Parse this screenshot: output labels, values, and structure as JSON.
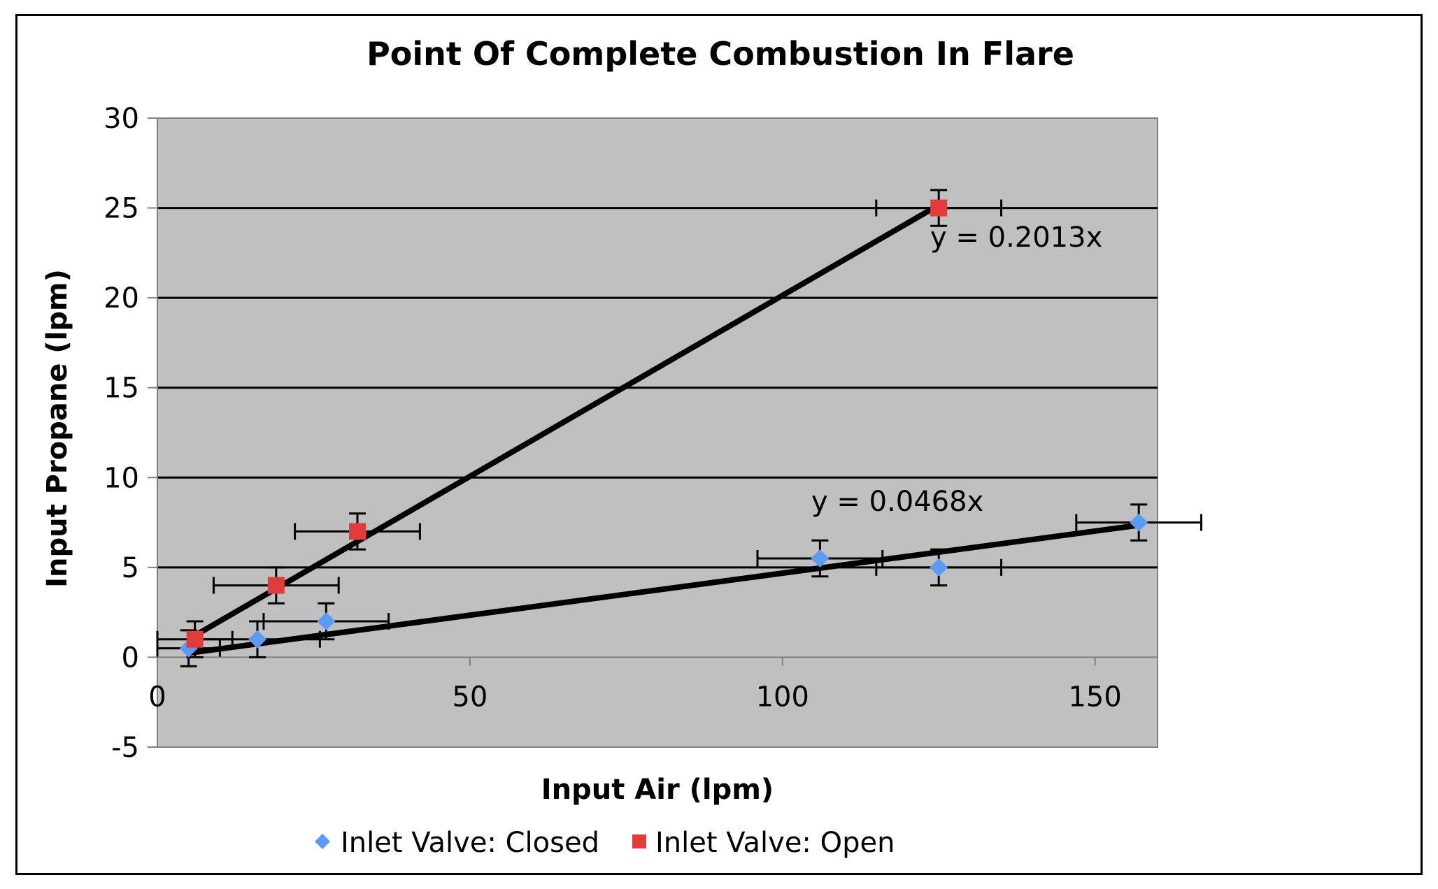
{
  "chart_data": {
    "type": "scatter",
    "title": "Point Of Complete Combustion In Flare",
    "xlabel": "Input Air (lpm)",
    "ylabel": "Input Propane (lpm)",
    "xlim": [
      0,
      160
    ],
    "ylim": [
      -5,
      30
    ],
    "xticks": [
      0,
      50,
      100,
      150
    ],
    "yticks": [
      -5,
      0,
      5,
      10,
      15,
      20,
      25,
      30
    ],
    "grid": "horizontal",
    "legend_position": "bottom",
    "plot_background": "#c0c0c0",
    "series": [
      {
        "name": "Inlet Valve: Closed",
        "marker": "diamond",
        "color": "#5b9bf5",
        "x": [
          5,
          16,
          27,
          106,
          125,
          157
        ],
        "y": [
          0.5,
          1,
          2,
          5.5,
          5,
          7.5
        ],
        "x_err": [
          5,
          10,
          10,
          10,
          10,
          10
        ],
        "y_err": [
          1,
          1,
          1,
          1,
          1,
          1
        ],
        "trendline": {
          "slope": 0.0468,
          "label": "y = 0.0468x",
          "x_range": [
            5,
            157
          ]
        }
      },
      {
        "name": "Inlet Valve: Open",
        "marker": "square",
        "color": "#e03c3c",
        "x": [
          6,
          19,
          32,
          125
        ],
        "y": [
          1,
          4,
          7,
          25
        ],
        "x_err": [
          6,
          10,
          10,
          10
        ],
        "y_err": [
          1,
          1,
          1,
          1
        ],
        "trendline": {
          "slope": 0.2013,
          "label": "y = 0.2013x",
          "x_range": [
            6,
            125
          ]
        }
      }
    ]
  }
}
